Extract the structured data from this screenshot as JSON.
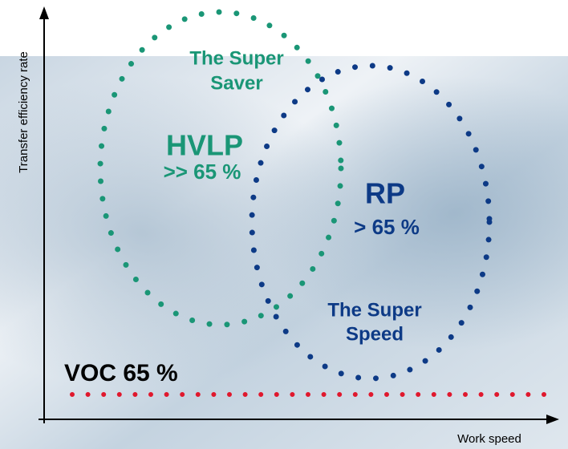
{
  "axes": {
    "y_label": "Transfer efficiency rate",
    "x_label": "Work speed"
  },
  "regions": [
    {
      "name_lines": [
        "The Super",
        "Saver"
      ],
      "label": "HVLP",
      "rate": ">> 65 %"
    },
    {
      "name_lines": [
        "The Super",
        "Speed"
      ],
      "label": "RP",
      "rate": "> 65 %"
    }
  ],
  "threshold": {
    "label": "VOC 65 %"
  }
}
